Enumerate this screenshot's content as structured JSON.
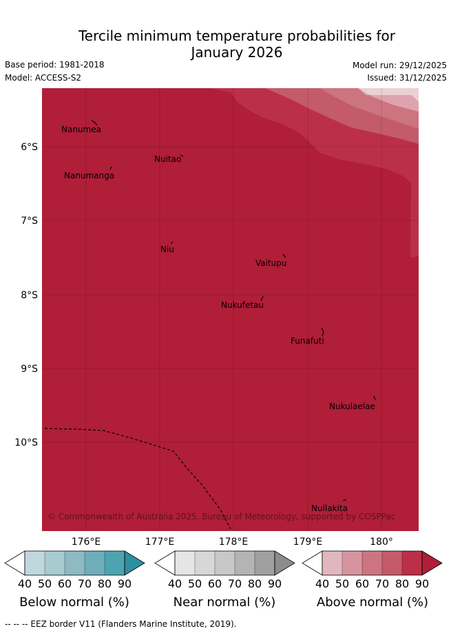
{
  "title": {
    "line1": "Tercile minimum temperature probabilities for",
    "line2": "January 2026"
  },
  "meta": {
    "base_period": "Base period: 1981-2018",
    "model": "Model: ACCESS-S2",
    "model_run": "Model run: 29/12/2025",
    "issued": "Issued: 31/12/2025"
  },
  "colors": {
    "above_base": "#b01e38",
    "ocean_bg": "#b01e38",
    "above": [
      "#e1b7bf",
      "#d7949f",
      "#cd7481",
      "#c35b6a",
      "#bb3048",
      "#b01e38"
    ],
    "near": [
      "#e5e5e5",
      "#d7d7d7",
      "#c8c8c8",
      "#b4b4b4",
      "#a0a0a0",
      "#8c8c8c"
    ],
    "below": [
      "#c0d8dd",
      "#a8cbd0",
      "#8dbac4",
      "#6eaeba",
      "#4ca4b2",
      "#2e8fa0"
    ]
  },
  "map": {
    "lat_labels": [
      "6°S",
      "7°S",
      "8°S",
      "9°S",
      "10°S"
    ],
    "lon_labels": [
      "176°E",
      "177°E",
      "178°E",
      "179°E",
      "180°"
    ],
    "places": [
      {
        "name": "Nanumea"
      },
      {
        "name": "Nuitao"
      },
      {
        "name": "Nanumanga"
      },
      {
        "name": "Niu"
      },
      {
        "name": "Vaitupu"
      },
      {
        "name": "Nukufetau"
      },
      {
        "name": "Funafuti"
      },
      {
        "name": "Nukulaelae"
      },
      {
        "name": "Nuilakita"
      }
    ],
    "copyright": "© Commonwealth of Australia 2025, Bureau of Meteorology, supported by COSPPac"
  },
  "colorbars": {
    "ticks": [
      "40",
      "50",
      "60",
      "70",
      "80",
      "90"
    ],
    "below_title": "Below normal (%)",
    "near_title": "Near normal (%)",
    "above_title": "Above normal (%)"
  },
  "footer": "--  --  -- EEZ border V11 (Flanders Marine Institute, 2019)."
}
